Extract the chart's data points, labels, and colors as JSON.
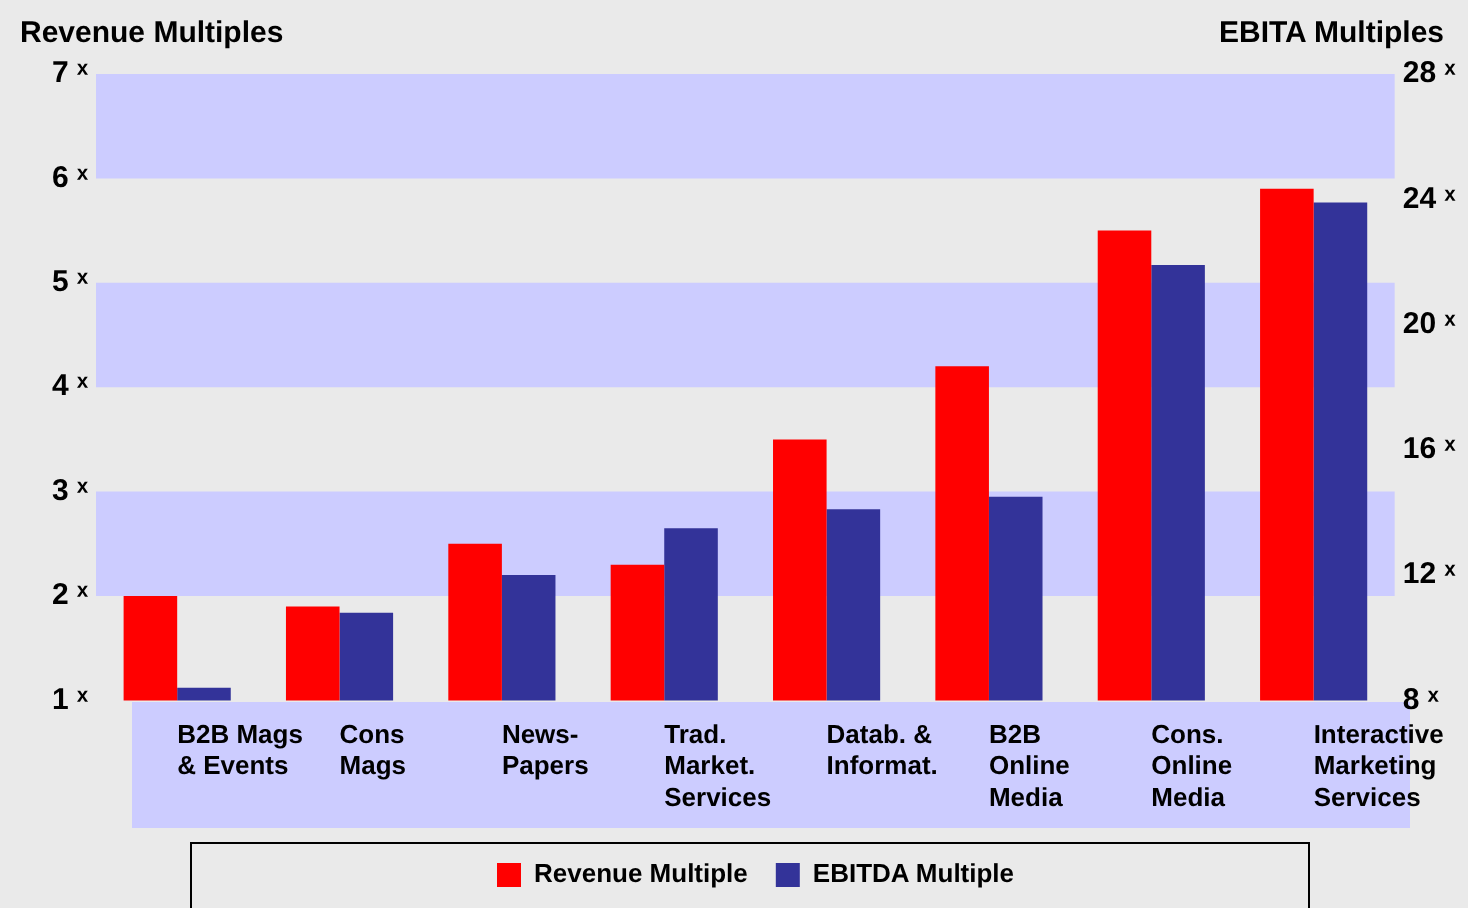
{
  "chart_data": {
    "type": "bar",
    "ylabel": "Revenue Multiples",
    "y2label": "EBITA Multiples",
    "categories": [
      "B2B Mags\n& Events",
      "Cons\nMags",
      "News-\nPapers",
      "Trad.\nMarket.\nServices",
      "Datab. &\nInformat.",
      "B2B\nOnline\nMedia",
      "Cons.\nOnline\nMedia",
      "Interactive\nMarketing\nServices"
    ],
    "series": [
      {
        "name": "Revenue Multiple",
        "color": "#ff0000",
        "values": [
          2.0,
          1.9,
          2.5,
          2.3,
          3.5,
          4.2,
          5.5,
          5.9
        ]
      },
      {
        "name": "EBITDA Multiple",
        "color": "#333399",
        "axis": "y2",
        "values": [
          8.4,
          10.8,
          12.0,
          13.5,
          14.1,
          14.5,
          21.9,
          23.9
        ]
      }
    ],
    "ylim": [
      1,
      7
    ],
    "yticks": [
      {
        "value": 1,
        "label": "1 ˣ"
      },
      {
        "value": 2,
        "label": "2 ˣ"
      },
      {
        "value": 3,
        "label": "3 ˣ"
      },
      {
        "value": 4,
        "label": "4 ˣ"
      },
      {
        "value": 5,
        "label": "5 ˣ"
      },
      {
        "value": 6,
        "label": "6 ˣ"
      },
      {
        "value": 7,
        "label": "7 ˣ"
      }
    ],
    "y2lim": [
      8,
      28
    ],
    "y2ticks": [
      {
        "value": 8,
        "label": "8 ˣ"
      },
      {
        "value": 12,
        "label": "12 ˣ"
      },
      {
        "value": 16,
        "label": "16 ˣ"
      },
      {
        "value": 20,
        "label": "20 ˣ"
      },
      {
        "value": 24,
        "label": "24 ˣ"
      },
      {
        "value": 28,
        "label": "28 ˣ"
      }
    ],
    "bands": [
      {
        "axis": "y",
        "from": 2,
        "to": 3,
        "color": "#ccccff"
      },
      {
        "axis": "y",
        "from": 4,
        "to": 5,
        "color": "#ccccff"
      },
      {
        "axis": "y",
        "from": 6,
        "to": 7,
        "color": "#ccccff"
      }
    ],
    "grid": false,
    "legend": "bottom"
  }
}
